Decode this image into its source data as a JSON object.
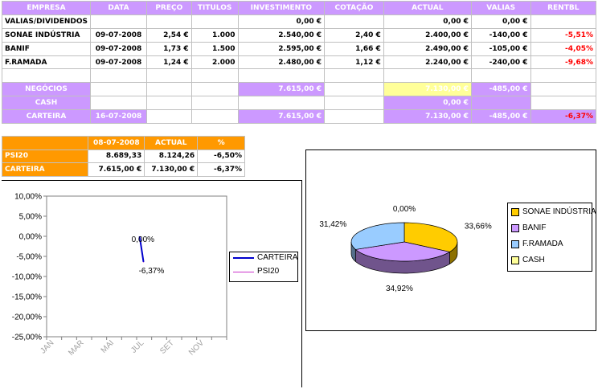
{
  "portfolio": {
    "headers": [
      "EMPRESA",
      "DATA",
      "PREÇO",
      "TITULOS",
      "INVESTIMENTO",
      "COTAÇÃO",
      "ACTUAL",
      "VALIAS",
      "RENTBL"
    ],
    "rows": [
      {
        "empresa": "VALIAS/DIVIDENDOS",
        "data": "",
        "preco": "",
        "titulos": "",
        "investimento": "0,00 €",
        "cotacao": "",
        "actual": "0,00 €",
        "valias": "0,00 €",
        "rentbl": ""
      },
      {
        "empresa": "SONAE INDÚSTRIA",
        "data": "09-07-2008",
        "preco": "2,54 €",
        "titulos": "1.000",
        "investimento": "2.540,00 €",
        "cotacao": "2,40 €",
        "actual": "2.400,00 €",
        "valias": "-140,00 €",
        "rentbl": "-5,51%"
      },
      {
        "empresa": "BANIF",
        "data": "09-07-2008",
        "preco": "1,73 €",
        "titulos": "1.500",
        "investimento": "2.595,00 €",
        "cotacao": "1,66 €",
        "actual": "2.490,00 €",
        "valias": "-105,00 €",
        "rentbl": "-4,05%"
      },
      {
        "empresa": "F.RAMADA",
        "data": "09-07-2008",
        "preco": "1,24 €",
        "titulos": "2.000",
        "investimento": "2.480,00 €",
        "cotacao": "1,12 €",
        "actual": "2.240,00 €",
        "valias": "-240,00 €",
        "rentbl": "-9,68%"
      }
    ],
    "negocios": {
      "label": "NEGÓCIOS",
      "investimento": "7.615,00 €",
      "actual": "7.130,00 €",
      "valias": "-485,00 €"
    },
    "cash": {
      "label": "CASH",
      "actual": "0,00 €"
    },
    "carteira": {
      "label": "CARTEIRA",
      "data": "16-07-2008",
      "investimento": "7.615,00 €",
      "actual": "7.130,00 €",
      "valias": "-485,00 €",
      "rentbl": "-6,37%"
    }
  },
  "summary": {
    "headers": [
      "08-07-2008",
      "ACTUAL",
      "%"
    ],
    "rows": [
      {
        "label": "PSI20",
        "start": "8.689,33",
        "actual": "8.124,26",
        "pct": "-6,50%"
      },
      {
        "label": "CARTEIRA",
        "start": "7.615,00 €",
        "actual": "7.130,00 €",
        "pct": "-6,37%"
      }
    ]
  },
  "colors": {
    "accent_purple": "#cc99ff",
    "accent_orange": "#ff9900",
    "highlight_yellow": "#ffff99",
    "negative": "#ff0000",
    "carteira_line": "#0000cc",
    "psi20_line": "#cc33cc"
  },
  "chart_data": [
    {
      "type": "line",
      "title": "",
      "xlabel": "",
      "ylabel": "",
      "categories": [
        "JAN",
        "MAR",
        "MAI",
        "JUL",
        "SET",
        "NOV"
      ],
      "y_ticks": [
        "10,00%",
        "5,00%",
        "0,00%",
        "-5,00%",
        "-10,00%",
        "-15,00%",
        "-20,00%",
        "-25,00%"
      ],
      "ylim": [
        -25,
        10
      ],
      "series": [
        {
          "name": "CARTEIRA",
          "color": "#0000cc",
          "points": [
            {
              "x": "2008-07-08",
              "y": 0.0
            },
            {
              "x": "2008-07-16",
              "y": -6.37
            }
          ],
          "labels": [
            "0,00%",
            "-6,37%"
          ]
        },
        {
          "name": "PSI20",
          "color": "#cc33cc",
          "points": [
            {
              "x": "2008-07-08",
              "y": 0.0
            },
            {
              "x": "2008-07-16",
              "y": -6.5
            }
          ],
          "labels": []
        }
      ],
      "legend": "right",
      "grid": false
    },
    {
      "type": "pie",
      "style": "3d",
      "title": "",
      "legend": "right",
      "slices": [
        {
          "label": "SONAE INDÚSTRIA",
          "value": 33.66,
          "value_label": "33,66%",
          "color": "#ffcc00"
        },
        {
          "label": "BANIF",
          "value": 34.92,
          "value_label": "34,92%",
          "color": "#cc99ff"
        },
        {
          "label": "F.RAMADA",
          "value": 31.42,
          "value_label": "31,42%",
          "color": "#99ccff"
        },
        {
          "label": "CASH",
          "value": 0.0,
          "value_label": "0,00%",
          "color": "#ffff99"
        }
      ]
    }
  ]
}
